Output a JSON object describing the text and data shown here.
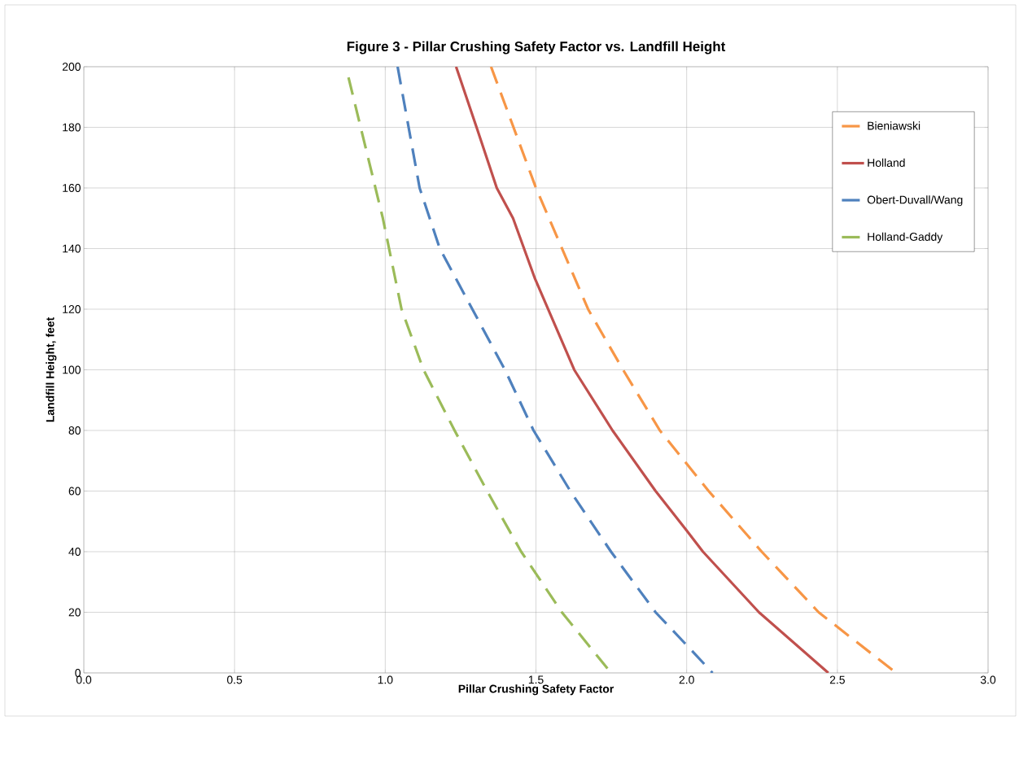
{
  "chart_data": {
    "type": "line",
    "title": "Figure 3 - Pillar Crushing Safety Factor vs. Landfill Height",
    "xlabel": "Pillar Crushing Safety Factor",
    "ylabel": "Landfill Height, feet",
    "xlim": [
      0,
      3
    ],
    "xticks": [
      {
        "value": 0,
        "label": "0.0"
      },
      0.5,
      {
        "value": 1,
        "label": "1.0"
      },
      1.5,
      {
        "value": 2,
        "label": "2.0"
      },
      2.5,
      {
        "value": 3,
        "label": "3.0"
      }
    ],
    "ylim": [
      0,
      200
    ],
    "yticks": [
      0,
      20,
      40,
      60,
      80,
      100,
      120,
      140,
      160,
      180,
      200
    ],
    "grid": true,
    "legend": "top right",
    "marker": "none",
    "series": [
      {
        "name": "Bieniawski",
        "color": "#f79646",
        "line_style": "dashed",
        "x": [
          1.351,
          1.5,
          1.673,
          1.789,
          1.911,
          1.992,
          2.073,
          2.249,
          2.438,
          2.695
        ],
        "values": [
          200,
          160,
          120,
          100,
          80,
          70,
          60,
          40,
          20,
          0
        ]
      },
      {
        "name": "Holland",
        "color": "#c0504d",
        "line_style": "solid",
        "x": [
          1.235,
          1.303,
          1.37,
          1.424,
          1.497,
          1.627,
          1.754,
          1.897,
          2.0,
          2.054,
          2.24,
          2.47
        ],
        "values": [
          200,
          180,
          160,
          150,
          130,
          100,
          80,
          60,
          47,
          40,
          20,
          0
        ]
      },
      {
        "name": "Obert-Duvall/Wang",
        "color": "#4f81bd",
        "line_style": "dashed",
        "x": [
          1.041,
          1.114,
          1.181,
          1.289,
          1.397,
          1.492,
          1.614,
          1.749,
          1.897,
          1.992,
          2.086
        ],
        "values": [
          200,
          160,
          140,
          120,
          100,
          80,
          60,
          40,
          20,
          10,
          0
        ]
      },
      {
        "name": "Holland-Gaddy",
        "color": "#9bbb59",
        "line_style": "dashed",
        "x": [
          0.878,
          0.992,
          1.054,
          1.127,
          1.23,
          1.338,
          1.451,
          1.586,
          1.749
        ],
        "values": [
          196.5,
          150,
          120,
          100,
          80,
          60,
          40,
          20,
          0
        ]
      }
    ]
  }
}
